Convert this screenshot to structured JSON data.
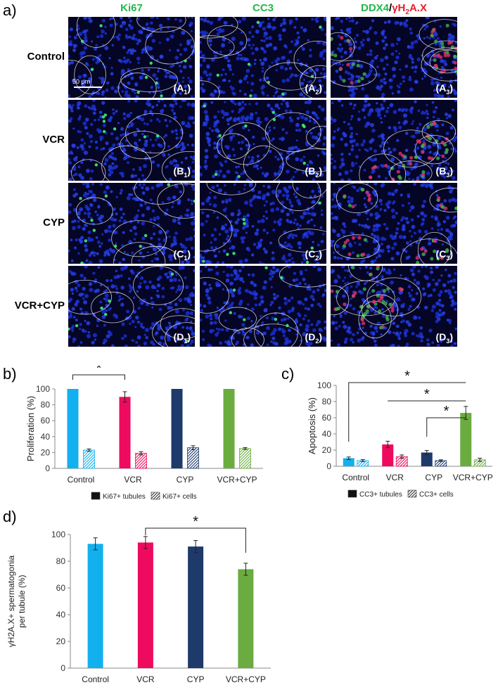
{
  "panel_labels": {
    "a": "a)",
    "b": "b)",
    "c": "c)",
    "d": "d)"
  },
  "micrograph": {
    "column_headers": [
      {
        "parts": [
          {
            "text": "Ki67",
            "color": "#22b84a"
          }
        ]
      },
      {
        "parts": [
          {
            "text": "CC3",
            "color": "#22b84a"
          }
        ]
      },
      {
        "parts": [
          {
            "text": "DDX4",
            "color": "#22b84a"
          },
          {
            "text": "/",
            "color": "#000000"
          },
          {
            "text": "γH",
            "color": "#e8202a"
          },
          {
            "text": "2",
            "color": "#e8202a",
            "sub": true
          },
          {
            "text": "A.X",
            "color": "#e8202a"
          }
        ]
      }
    ],
    "row_headers": [
      "Control",
      "VCR",
      "CYP",
      "VCR+CYP"
    ],
    "tile_letters": [
      "A",
      "B",
      "C",
      "D"
    ],
    "tile_indices": [
      "1",
      "2",
      "3"
    ],
    "scale_bar": "50 μm"
  },
  "chart_data": [
    {
      "id": "b",
      "type": "bar",
      "ylabel": "Proliferation (%)",
      "ylim": [
        0,
        100
      ],
      "yticks": [
        0,
        20,
        40,
        60,
        80,
        100
      ],
      "categories": [
        "Control",
        "VCR",
        "CYP",
        "VCR+CYP"
      ],
      "group_colors": [
        "#12b0ee",
        "#ee0a5e",
        "#1d3a6b",
        "#6aac3f"
      ],
      "series": [
        {
          "name": "Ki67+ tubules",
          "pattern": "solid",
          "values": [
            100,
            90,
            100,
            100
          ],
          "errors": [
            0,
            6.5,
            0,
            0
          ]
        },
        {
          "name": "Ki67+ cells",
          "pattern": "hatch",
          "values": [
            23,
            19,
            26,
            25
          ],
          "errors": [
            1.5,
            2,
            2.5,
            1.2
          ]
        }
      ],
      "significance": [
        {
          "from": 0,
          "to": 1,
          "label": "*"
        }
      ],
      "legend_position": "bottom"
    },
    {
      "id": "c",
      "type": "bar",
      "ylabel": "Apoptosis (%)",
      "ylim": [
        0,
        100
      ],
      "yticks": [
        0,
        20,
        40,
        60,
        80,
        100
      ],
      "categories": [
        "Control",
        "VCR",
        "CYP",
        "VCR+CYP"
      ],
      "group_colors": [
        "#12b0ee",
        "#ee0a5e",
        "#1d3a6b",
        "#6aac3f"
      ],
      "series": [
        {
          "name": "CC3+ tubules",
          "pattern": "solid",
          "values": [
            10,
            27,
            17,
            66
          ],
          "errors": [
            1.5,
            4,
            2.5,
            8
          ]
        },
        {
          "name": "CC3+ cells",
          "pattern": "hatch",
          "values": [
            7,
            12,
            7,
            8
          ],
          "errors": [
            1.2,
            2,
            1,
            2
          ]
        }
      ],
      "significance": [
        {
          "from": 0,
          "to": 3,
          "label": "*"
        },
        {
          "from": 1,
          "to": 3,
          "label": "*"
        },
        {
          "from": 2,
          "to": 3,
          "label": "*"
        }
      ],
      "legend_position": "bottom"
    },
    {
      "id": "d",
      "type": "bar",
      "ylabel_lines": [
        "γH2A.X+ spermatogonia",
        "per tubule (%)"
      ],
      "ylim": [
        0,
        100
      ],
      "yticks": [
        0,
        20,
        40,
        60,
        80,
        100
      ],
      "categories": [
        "Control",
        "VCR",
        "CYP",
        "VCR+CYP"
      ],
      "group_colors": [
        "#12b0ee",
        "#ee0a5e",
        "#1d3a6b",
        "#6aac3f"
      ],
      "series": [
        {
          "name": "",
          "pattern": "solid",
          "values": [
            93,
            94,
            91,
            74
          ],
          "errors": [
            4.5,
            4.5,
            4.5,
            4.5
          ]
        }
      ],
      "significance": [
        {
          "from": 1,
          "to": 3,
          "label": "*"
        }
      ]
    }
  ]
}
